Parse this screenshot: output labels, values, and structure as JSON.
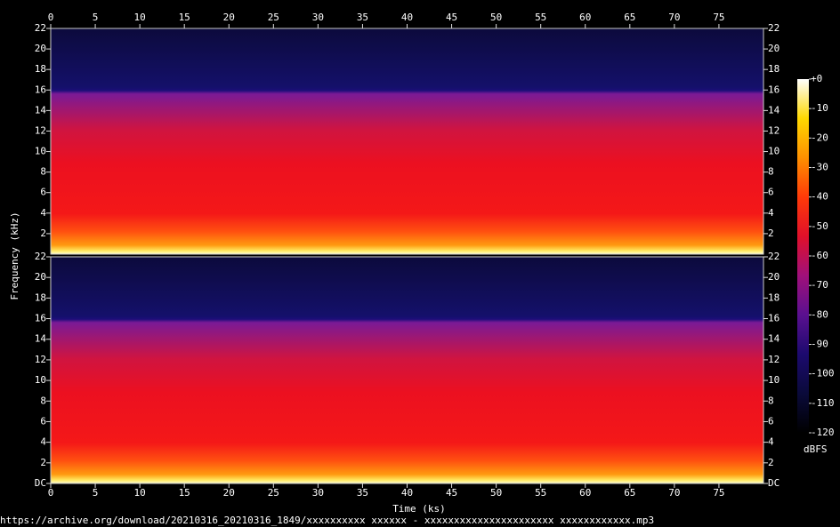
{
  "chart_data": {
    "type": "spectrogram",
    "xlabel": "Time (ks)",
    "ylabel": "Frequency (kHz)",
    "xlim": [
      0,
      80
    ],
    "xticks": [
      0,
      5,
      10,
      15,
      20,
      25,
      30,
      35,
      40,
      45,
      50,
      55,
      60,
      65,
      70,
      75
    ],
    "channels": [
      {
        "ylim": [
          0,
          22
        ],
        "yticks": [
          2,
          4,
          6,
          8,
          10,
          12,
          14,
          16,
          18,
          20,
          22
        ]
      },
      {
        "ylim": [
          0,
          22
        ],
        "yticks": [
          {
            "value": 0,
            "label": "DC"
          },
          2,
          4,
          6,
          8,
          10,
          12,
          14,
          16,
          18,
          20,
          22
        ]
      }
    ],
    "colorbar": {
      "label": "dBFS",
      "lim": [
        -120,
        0
      ],
      "ticks": [
        {
          "value": 0,
          "label": "+0"
        },
        -10,
        -20,
        -30,
        -40,
        -50,
        -60,
        -70,
        -80,
        -90,
        -100,
        -110,
        -120
      ],
      "colors": [
        "#000000",
        "#0a0a3a",
        "#1c0a6e",
        "#5a1090",
        "#a0107a",
        "#e0102a",
        "#ff3a08",
        "#ff9000",
        "#ffd800",
        "#ffffff"
      ]
    }
  },
  "footer": "https://archive.org/download/20210316_20210316_1849/xxxxxxxxxx xxxxxx - xxxxxxxxxxxxxxxxxxxxxx xxxxxxxxxxxx.mp3"
}
